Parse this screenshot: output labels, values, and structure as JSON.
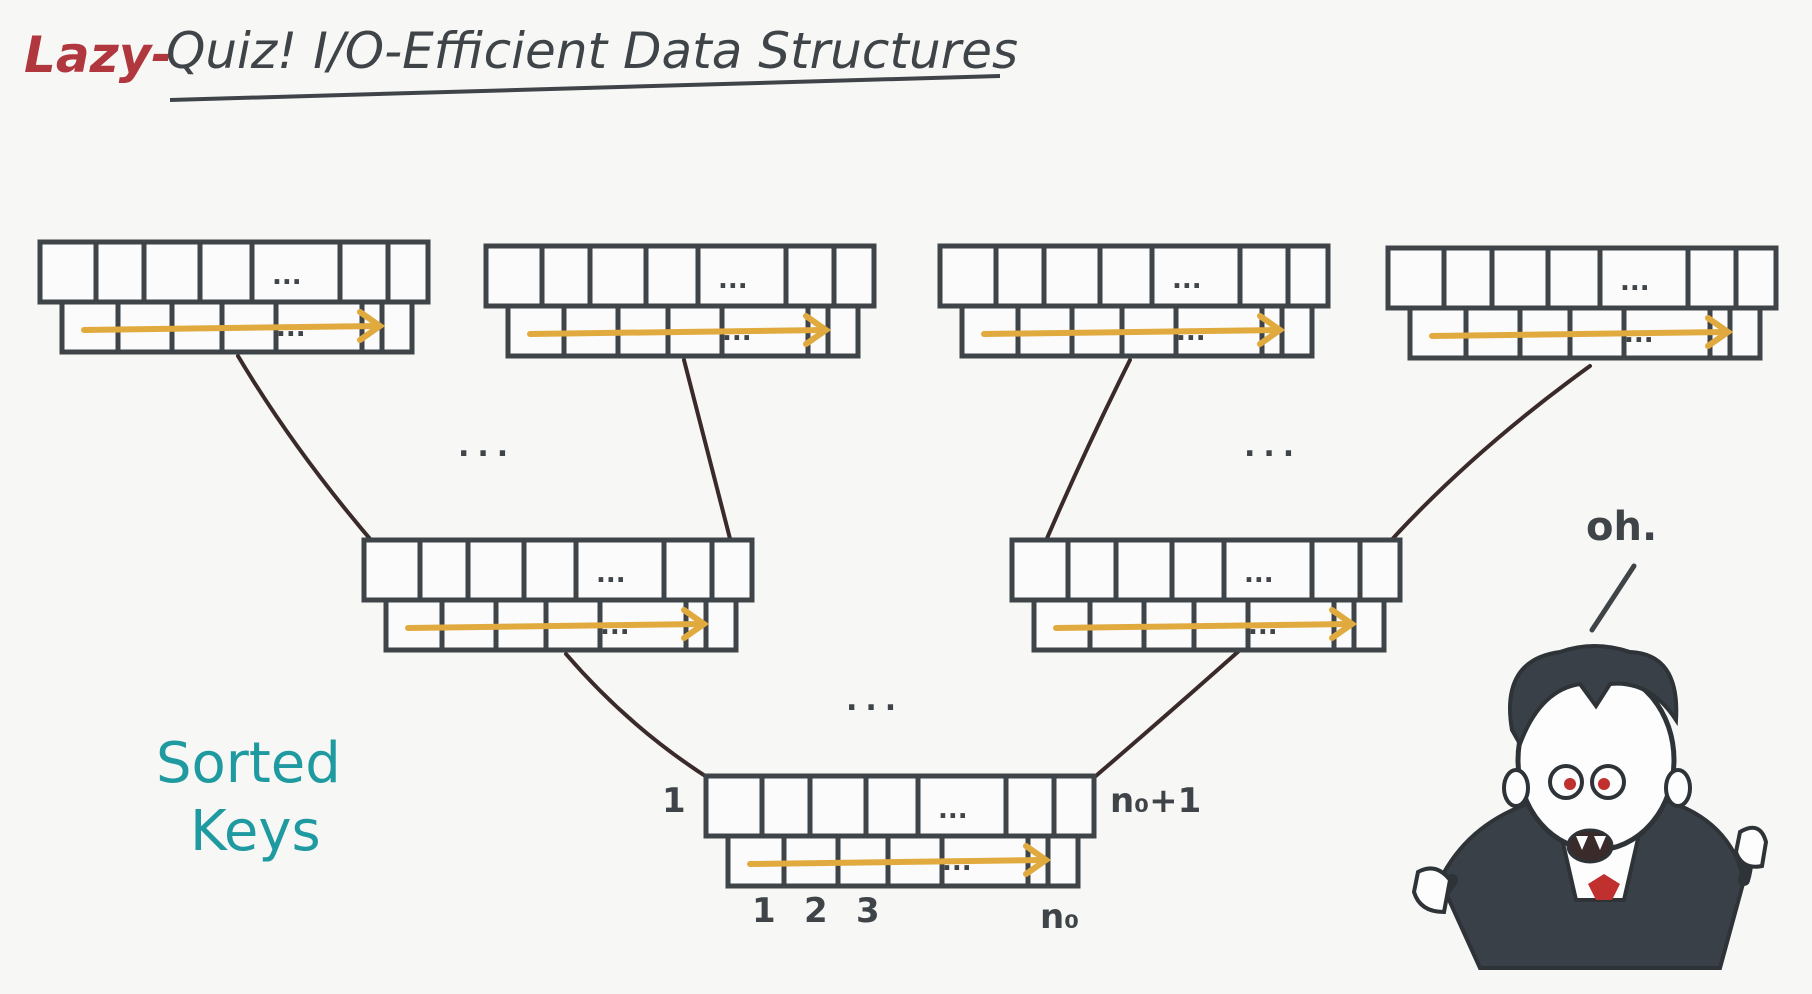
{
  "title": {
    "prefix": "Lazy-",
    "main": "Quiz! I/O-Efficient Data Structures"
  },
  "side_label": {
    "line1": "Sorted",
    "line2": "Keys"
  },
  "ellipsis": "...",
  "cell_ellipsis": "...",
  "root_labels": {
    "left_index": "1",
    "right_index": "n₀+1",
    "bottom_1": "1",
    "bottom_2": "2",
    "bottom_3": "3",
    "bottom_n": "n₀"
  },
  "speech": "oh.",
  "colors": {
    "title_prefix": "#b0373e",
    "ink": "#3f4449",
    "arrow": "#e1aa3f",
    "edge": "#3a2a2a",
    "side_label": "#1f9aa0",
    "cape_lining": "#c0302e"
  },
  "icons": [
    "vampire-character-icon"
  ]
}
